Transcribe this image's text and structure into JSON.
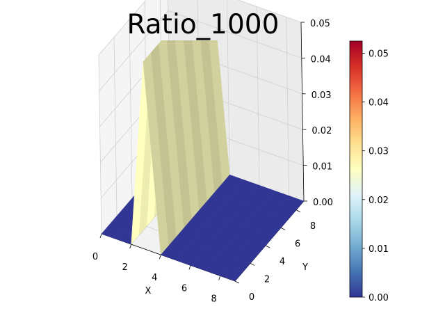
{
  "chart_data": {
    "type": "surface",
    "title": "Ratio_1000",
    "xlabel": "X",
    "ylabel": "Y",
    "zlabel": "",
    "x_ticks": [
      "0",
      "2",
      "4",
      "6",
      "8"
    ],
    "y_ticks": [
      "0",
      "2",
      "4",
      "6",
      "8"
    ],
    "z_ticks": [
      "0.00",
      "0.01",
      "0.02",
      "0.03",
      "0.04",
      "0.05"
    ],
    "xlim": [
      0,
      9
    ],
    "ylim": [
      0,
      9
    ],
    "zlim": [
      0,
      0.05
    ],
    "colormap": "RdYlBu_r",
    "colorbar": {
      "min": 0.0,
      "max": 0.0525,
      "ticks": [
        "0.00",
        "0.01",
        "0.02",
        "0.03",
        "0.04",
        "0.05"
      ]
    },
    "grid": true,
    "x": [
      0,
      1,
      2,
      3,
      4,
      5,
      6,
      7,
      8,
      9
    ],
    "y": [
      0,
      1,
      2,
      3,
      4,
      5,
      6,
      7,
      8,
      9
    ],
    "z": [
      [
        0,
        0,
        0,
        0,
        0,
        0,
        0,
        0,
        0,
        0
      ],
      [
        0,
        0,
        0,
        0,
        0,
        0,
        0,
        0,
        0,
        0
      ],
      [
        0,
        0,
        0,
        0,
        0,
        0,
        0,
        0,
        0,
        0
      ],
      [
        0.0525,
        0.0525,
        0.0525,
        0.0525,
        0.0525,
        0.0525,
        0.0525,
        0.0525,
        0.0525,
        0.0525
      ],
      [
        0,
        0,
        0,
        0,
        0,
        0,
        0,
        0,
        0,
        0
      ],
      [
        0,
        0,
        0,
        0,
        0,
        0,
        0,
        0,
        0,
        0
      ],
      [
        0,
        0,
        0,
        0,
        0,
        0,
        0,
        0,
        0,
        0
      ],
      [
        0,
        0,
        0,
        0,
        0,
        0,
        0,
        0,
        0,
        0
      ],
      [
        0,
        0,
        0,
        0,
        0,
        0,
        0,
        0,
        0,
        0
      ],
      [
        0,
        0,
        0,
        0,
        0,
        0,
        0,
        0,
        0,
        0
      ]
    ]
  }
}
